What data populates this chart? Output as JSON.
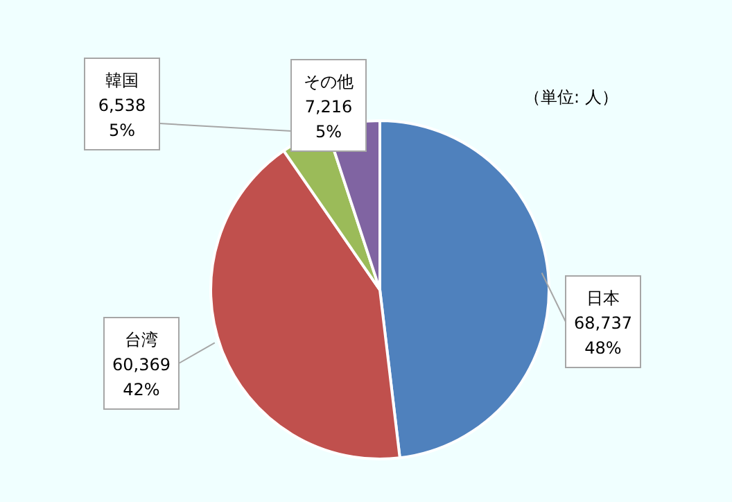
{
  "chart_data": {
    "type": "pie",
    "categories": [
      "日本",
      "台湾",
      "韓国",
      "その他"
    ],
    "values": [
      68737,
      60369,
      6538,
      7216
    ],
    "colors": [
      "#4f81bd",
      "#c0504d",
      "#9bbb59",
      "#8064a2"
    ],
    "value_labels": [
      "68,737\n48%",
      "60,369\n42%",
      "6,538\n5%",
      "7,216\n5%"
    ],
    "annotations": [
      "（単位: 人）"
    ]
  }
}
